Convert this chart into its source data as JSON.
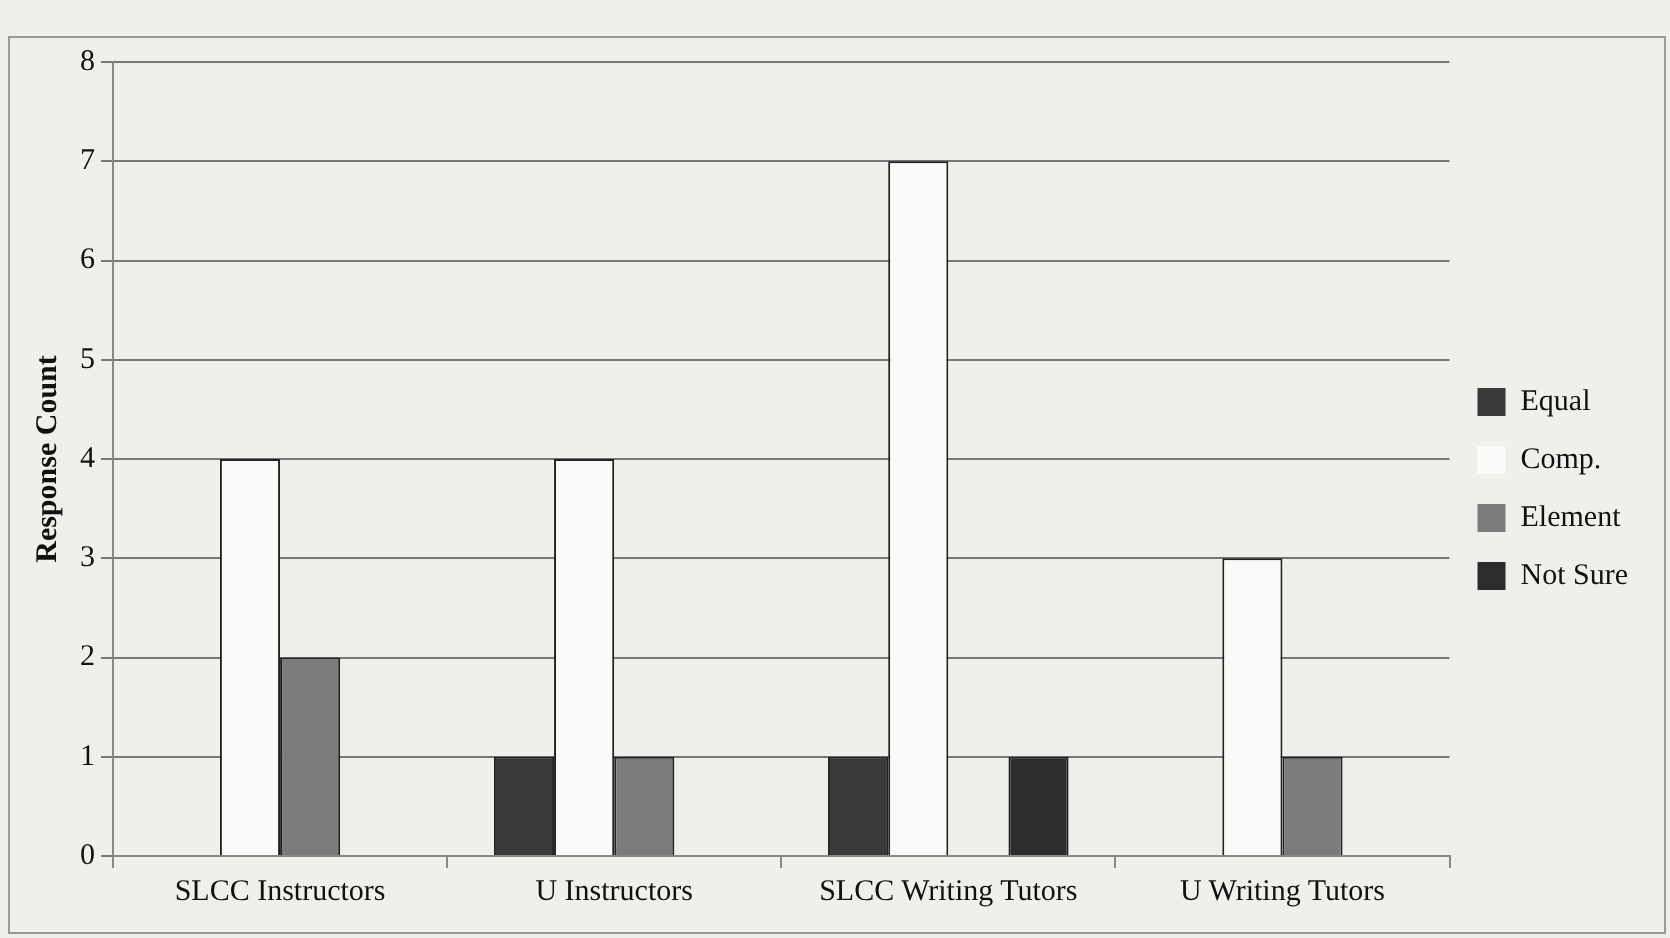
{
  "chart_data": {
    "type": "bar",
    "ylabel": "Response Count",
    "categories": [
      "SLCC Instructors",
      "U Instructors",
      "SLCC Writing Tutors",
      "U Writing Tutors"
    ],
    "series": [
      {
        "name": "Equal",
        "color": "#3a3a3a",
        "values": [
          0,
          1,
          1,
          0
        ]
      },
      {
        "name": "Comp.",
        "color": "#fafaf8",
        "values": [
          4,
          4,
          7,
          3
        ]
      },
      {
        "name": "Element",
        "color": "#7b7b7b",
        "values": [
          2,
          1,
          0,
          1
        ]
      },
      {
        "name": "Not Sure",
        "color": "#2c2c2c",
        "values": [
          0,
          0,
          1,
          0
        ]
      }
    ],
    "ylim": [
      0,
      8
    ],
    "yticks": [
      0,
      1,
      2,
      3,
      4,
      5,
      6,
      7,
      8
    ],
    "grid": "y",
    "legend": "right"
  }
}
